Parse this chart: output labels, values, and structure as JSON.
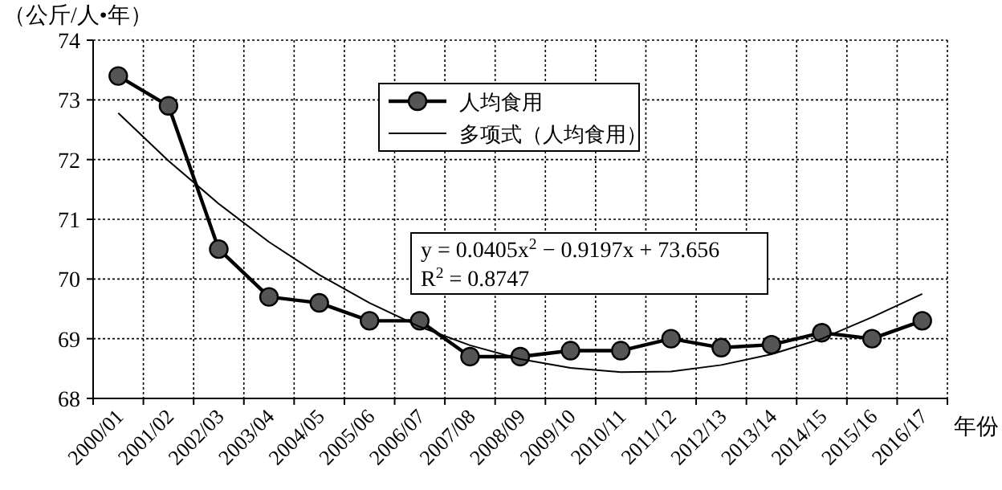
{
  "chart_data": {
    "type": "line",
    "ylabel": "（公斤/人•年）",
    "xlabel": "年份",
    "categories": [
      "2000/01",
      "2001/02",
      "2002/03",
      "2003/04",
      "2004/05",
      "2005/06",
      "2006/07",
      "2007/08",
      "2008/09",
      "2009/10",
      "2010/11",
      "2011/12",
      "2012/13",
      "2013/14",
      "2014/15",
      "2015/16",
      "2016/17"
    ],
    "series": [
      {
        "name": "人均食用",
        "color": "#000000",
        "marker": "circle",
        "values": [
          73.4,
          72.9,
          70.5,
          69.7,
          69.6,
          69.3,
          69.3,
          68.7,
          68.7,
          68.8,
          68.8,
          69.0,
          68.85,
          68.9,
          69.1,
          69.0,
          69.3
        ]
      },
      {
        "name": "多项式（人均食用）",
        "color": "#000000",
        "marker": "none",
        "values": [
          72.78,
          71.98,
          71.26,
          70.62,
          70.07,
          69.6,
          69.2,
          68.89,
          68.66,
          68.51,
          68.44,
          68.45,
          68.56,
          68.74,
          69.0,
          69.36,
          69.75
        ]
      }
    ],
    "ylim": [
      68,
      74
    ],
    "yticks": [
      68,
      69,
      70,
      71,
      72,
      73,
      74
    ],
    "grid": true,
    "legend": "top",
    "annotations": [
      "y = 0.0405x$^{2}$ − 0.9197x + 73.656",
      "R$^{2}$ = 0.8747"
    ]
  }
}
